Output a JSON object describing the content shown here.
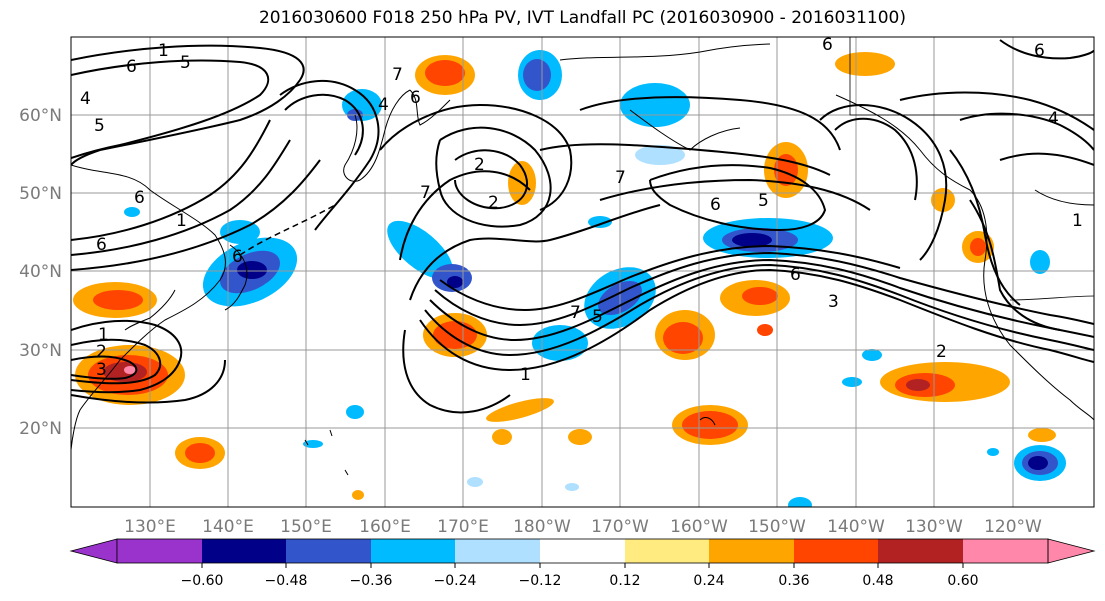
{
  "title": "2016030600 F018 250 hPa PV, IVT Landfall PC (2016030900 - 2016031100)",
  "lat_labels": [
    "60°N",
    "50°N",
    "40°N",
    "30°N",
    "20°N"
  ],
  "lon_labels": [
    "130°E",
    "140°E",
    "150°E",
    "160°E",
    "170°E",
    "180°W",
    "170°W",
    "160°W",
    "150°W",
    "140°W",
    "130°W",
    "120°W"
  ],
  "colorbar": {
    "ticks": [
      "−0.60",
      "−0.48",
      "−0.36",
      "−0.24",
      "−0.12",
      "0.12",
      "0.24",
      "0.36",
      "0.48",
      "0.60"
    ],
    "colors": [
      "#9933cc",
      "#000088",
      "#3355cc",
      "#00bbff",
      "#b0e0ff",
      "#ffffff",
      "#ffeb80",
      "#ffa500",
      "#ff4500",
      "#b22222",
      "#ff88aa"
    ]
  },
  "contour_labels": [
    "1",
    "6",
    "5",
    "6",
    "4",
    "5",
    "6",
    "6",
    "1",
    "2",
    "3",
    "7",
    "4",
    "6",
    "7",
    "2",
    "2",
    "5",
    "5",
    "7",
    "6",
    "5",
    "6",
    "4",
    "7",
    "6",
    "5",
    "3",
    "2",
    "1",
    "5",
    "3",
    "1",
    "2",
    "6",
    "1"
  ]
}
